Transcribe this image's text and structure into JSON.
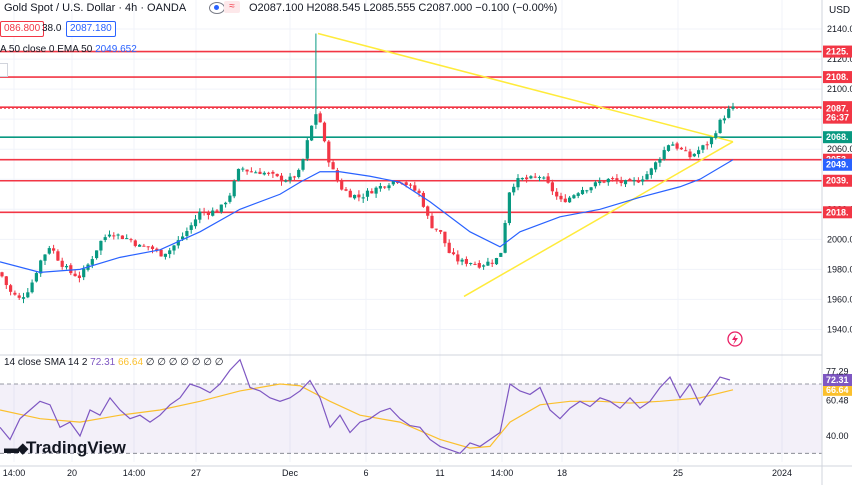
{
  "header": {
    "symbol": "Gold Spot / U.S. Dollar · 4h · OANDA",
    "ohlc": "O2087.100 H2088.545 L2085.555 C2087.000 −0.100 (−0.00%)",
    "sell_price": "086.800",
    "spread": "38.0",
    "buy_price": "2087.180",
    "ema_legend": "A 50 close 0 EMA 50",
    "ema_value": "2049.652",
    "rsi_legend": "14 close SMA 14 2",
    "rsi_value": "72.31",
    "rsi_sma_value": "66.64",
    "rsi_extra": "∅ ∅ ∅ ∅ ∅ ∅ ∅",
    "currency": "USD"
  },
  "logo_text": "TradingView",
  "colors": {
    "up": "#089981",
    "down": "#f23645",
    "ema": "#2962ff",
    "resistance": "#f23645",
    "support": "#089981",
    "triangle": "#ffeb3b",
    "rsi_line": "#7e57c2",
    "rsi_sma": "#fbc02d",
    "axis_text": "#131722"
  },
  "chart_data": [
    {
      "type": "candlestick",
      "title": "Gold Spot / U.S. Dollar · 4h · OANDA",
      "ylim": [
        1925,
        2150
      ],
      "y_ticks": [
        1940,
        1960,
        1980,
        2000,
        2020,
        2040,
        2060,
        2080,
        2100,
        2120,
        2140
      ],
      "x_ticks": [
        "14:00",
        "20",
        "14:00",
        "27",
        "Dec",
        "6",
        "11",
        "14:00",
        "18",
        "25",
        "2024"
      ],
      "price_levels": [
        {
          "label": "2125.",
          "value": 2125,
          "kind": "resistance"
        },
        {
          "label": "2108.",
          "value": 2108,
          "kind": "resistance"
        },
        {
          "label": "2088.",
          "value": 2088,
          "kind": "resistance"
        },
        {
          "label": "2087.",
          "value": 2087,
          "kind": "current"
        },
        {
          "label": "26:37",
          "value": 2081,
          "kind": "countdown"
        },
        {
          "label": "2068.",
          "value": 2068,
          "kind": "support"
        },
        {
          "label": "2053.",
          "value": 2053,
          "kind": "resistance"
        },
        {
          "label": "2049.",
          "value": 2049.65,
          "kind": "ema"
        },
        {
          "label": "2039.",
          "value": 2039,
          "kind": "resistance"
        },
        {
          "label": "2018.",
          "value": 2018,
          "kind": "resistance"
        }
      ],
      "triangle": {
        "upper": [
          [
            318,
            2137
          ],
          [
            733,
            2065
          ]
        ],
        "lower": [
          [
            464,
            1962
          ],
          [
            733,
            2065
          ]
        ]
      },
      "close_path": [
        [
          0,
          1978
        ],
        [
          10,
          1965
        ],
        [
          20,
          1960
        ],
        [
          30,
          1968
        ],
        [
          40,
          1985
        ],
        [
          50,
          1996
        ],
        [
          60,
          1985
        ],
        [
          70,
          1978
        ],
        [
          80,
          1975
        ],
        [
          90,
          1985
        ],
        [
          100,
          1998
        ],
        [
          110,
          2005
        ],
        [
          120,
          2002
        ],
        [
          130,
          2000
        ],
        [
          140,
          1995
        ],
        [
          150,
          1995
        ],
        [
          160,
          1990
        ],
        [
          170,
          1993
        ],
        [
          180,
          2000
        ],
        [
          190,
          2008
        ],
        [
          200,
          2018
        ],
        [
          210,
          2018
        ],
        [
          220,
          2020
        ],
        [
          230,
          2030
        ],
        [
          240,
          2048
        ],
        [
          250,
          2045
        ],
        [
          260,
          2045
        ],
        [
          270,
          2043
        ],
        [
          280,
          2040
        ],
        [
          290,
          2040
        ],
        [
          300,
          2045
        ],
        [
          310,
          2072
        ],
        [
          318,
          2088
        ],
        [
          322,
          2070
        ],
        [
          330,
          2050
        ],
        [
          340,
          2035
        ],
        [
          350,
          2030
        ],
        [
          360,
          2028
        ],
        [
          370,
          2032
        ],
        [
          380,
          2035
        ],
        [
          390,
          2038
        ],
        [
          400,
          2040
        ],
        [
          410,
          2035
        ],
        [
          420,
          2030
        ],
        [
          430,
          2010
        ],
        [
          440,
          2005
        ],
        [
          450,
          1990
        ],
        [
          460,
          1985
        ],
        [
          470,
          1985
        ],
        [
          480,
          1983
        ],
        [
          490,
          1985
        ],
        [
          500,
          1988
        ],
        [
          510,
          2035
        ],
        [
          520,
          2040
        ],
        [
          530,
          2040
        ],
        [
          540,
          2042
        ],
        [
          550,
          2035
        ],
        [
          560,
          2025
        ],
        [
          570,
          2028
        ],
        [
          580,
          2033
        ],
        [
          590,
          2035
        ],
        [
          600,
          2038
        ],
        [
          610,
          2040
        ],
        [
          620,
          2038
        ],
        [
          630,
          2037
        ],
        [
          640,
          2040
        ],
        [
          650,
          2045
        ],
        [
          660,
          2055
        ],
        [
          670,
          2065
        ],
        [
          680,
          2060
        ],
        [
          690,
          2055
        ],
        [
          700,
          2060
        ],
        [
          710,
          2065
        ],
        [
          720,
          2078
        ],
        [
          730,
          2087
        ]
      ],
      "ema_path": [
        [
          0,
          1985
        ],
        [
          40,
          1978
        ],
        [
          80,
          1980
        ],
        [
          120,
          1988
        ],
        [
          160,
          1993
        ],
        [
          200,
          2005
        ],
        [
          240,
          2020
        ],
        [
          280,
          2030
        ],
        [
          300,
          2038
        ],
        [
          320,
          2045
        ],
        [
          340,
          2045
        ],
        [
          370,
          2042
        ],
        [
          400,
          2038
        ],
        [
          430,
          2025
        ],
        [
          470,
          2005
        ],
        [
          500,
          1995
        ],
        [
          520,
          2005
        ],
        [
          560,
          2015
        ],
        [
          600,
          2020
        ],
        [
          640,
          2028
        ],
        [
          680,
          2035
        ],
        [
          700,
          2040
        ],
        [
          733,
          2053
        ]
      ]
    },
    {
      "type": "line",
      "title": "RSI 14",
      "ylim": [
        25,
        85
      ],
      "y_ticks": [
        40,
        60.48,
        66.64,
        72.31,
        77.29
      ],
      "levels": [
        70,
        30
      ],
      "series": [
        {
          "name": "RSI",
          "values": [
            [
              0,
              45
            ],
            [
              10,
              38
            ],
            [
              20,
              50
            ],
            [
              30,
              55
            ],
            [
              40,
              60
            ],
            [
              50,
              58
            ],
            [
              60,
              45
            ],
            [
              70,
              48
            ],
            [
              80,
              40
            ],
            [
              90,
              55
            ],
            [
              100,
              52
            ],
            [
              110,
              62
            ],
            [
              120,
              55
            ],
            [
              130,
              50
            ],
            [
              140,
              52
            ],
            [
              150,
              48
            ],
            [
              160,
              52
            ],
            [
              170,
              58
            ],
            [
              180,
              62
            ],
            [
              190,
              70
            ],
            [
              200,
              68
            ],
            [
              210,
              65
            ],
            [
              220,
              70
            ],
            [
              230,
              78
            ],
            [
              240,
              84
            ],
            [
              250,
              68
            ],
            [
              260,
              66
            ],
            [
              270,
              62
            ],
            [
              280,
              60
            ],
            [
              290,
              62
            ],
            [
              300,
              66
            ],
            [
              310,
              72
            ],
            [
              320,
              62
            ],
            [
              330,
              45
            ],
            [
              340,
              52
            ],
            [
              350,
              42
            ],
            [
              360,
              48
            ],
            [
              370,
              50
            ],
            [
              380,
              54
            ],
            [
              390,
              56
            ],
            [
              400,
              50
            ],
            [
              410,
              46
            ],
            [
              420,
              45
            ],
            [
              430,
              38
            ],
            [
              440,
              34
            ],
            [
              450,
              32
            ],
            [
              460,
              30
            ],
            [
              470,
              36
            ],
            [
              480,
              34
            ],
            [
              490,
              38
            ],
            [
              500,
              42
            ],
            [
              510,
              70
            ],
            [
              520,
              66
            ],
            [
              530,
              64
            ],
            [
              540,
              68
            ],
            [
              550,
              55
            ],
            [
              560,
              50
            ],
            [
              570,
              56
            ],
            [
              580,
              60
            ],
            [
              590,
              57
            ],
            [
              600,
              62
            ],
            [
              610,
              60
            ],
            [
              620,
              56
            ],
            [
              630,
              62
            ],
            [
              640,
              56
            ],
            [
              650,
              60
            ],
            [
              660,
              68
            ],
            [
              670,
              74
            ],
            [
              680,
              62
            ],
            [
              690,
              70
            ],
            [
              700,
              58
            ],
            [
              710,
              66
            ],
            [
              720,
              74
            ],
            [
              730,
              72.31
            ]
          ]
        },
        {
          "name": "SMA",
          "values": [
            [
              0,
              55
            ],
            [
              40,
              50
            ],
            [
              80,
              48
            ],
            [
              120,
              52
            ],
            [
              160,
              55
            ],
            [
              200,
              60
            ],
            [
              240,
              66
            ],
            [
              280,
              70
            ],
            [
              300,
              69
            ],
            [
              330,
              60
            ],
            [
              360,
              52
            ],
            [
              400,
              48
            ],
            [
              440,
              38
            ],
            [
              470,
              33
            ],
            [
              490,
              34
            ],
            [
              510,
              48
            ],
            [
              540,
              58
            ],
            [
              570,
              60
            ],
            [
              600,
              60
            ],
            [
              630,
              59
            ],
            [
              660,
              60
            ],
            [
              700,
              62
            ],
            [
              733,
              66.64
            ]
          ]
        }
      ]
    }
  ]
}
